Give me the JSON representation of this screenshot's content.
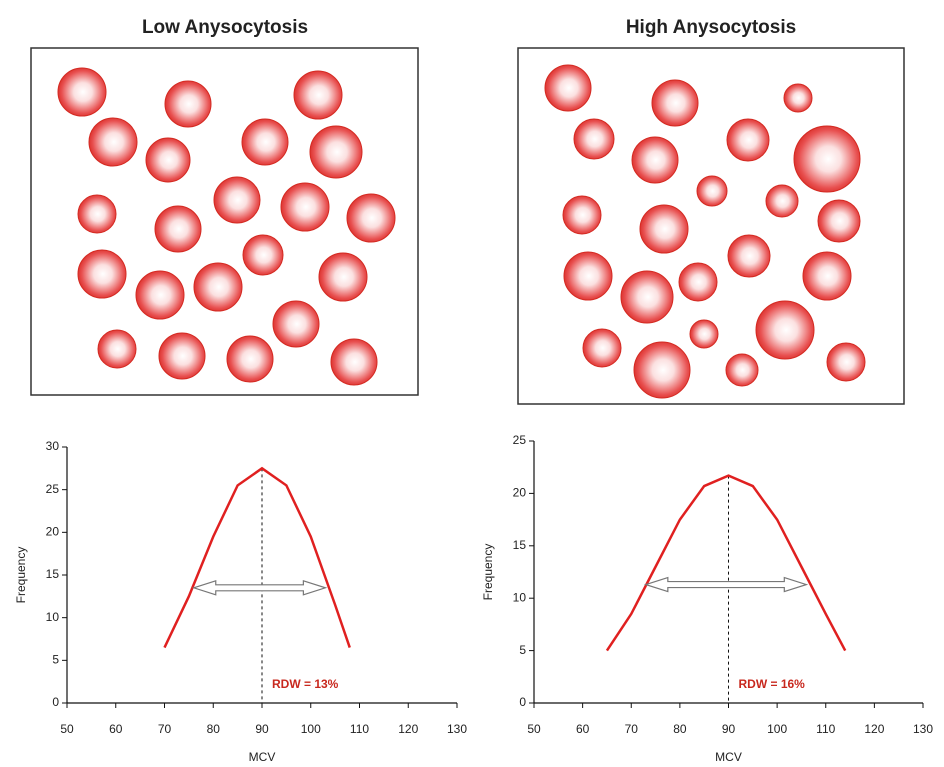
{
  "chart_data": [
    {
      "type": "line",
      "title": "Low Anysocytosis",
      "x_label": "MCV",
      "y_label": "Frequency",
      "x": [
        70,
        75,
        80,
        85,
        90,
        95,
        100,
        105,
        108
      ],
      "values": [
        6.5,
        12.5,
        19.5,
        25.5,
        27.5,
        25.5,
        19.5,
        11.5,
        6.5
      ],
      "color": "#e02020",
      "xlim": [
        50,
        130
      ],
      "xticks": [
        50,
        60,
        70,
        80,
        90,
        100,
        110,
        120,
        130
      ],
      "ylim": [
        0,
        30
      ],
      "yticks": [
        0,
        5,
        10,
        15,
        20,
        25,
        30
      ],
      "mean_line": {
        "x": 90,
        "y": 27.5
      },
      "rdw_arrow": {
        "y": 13.5,
        "x_start": 76,
        "x_end": 103
      },
      "annotation": "RDW = 13%"
    },
    {
      "type": "line",
      "title": "High Anysocytosis",
      "x_label": "MCV",
      "y_label": "Frequency",
      "x": [
        65,
        70,
        75,
        80,
        85,
        90,
        95,
        100,
        105,
        110,
        114
      ],
      "values": [
        5,
        8.5,
        13,
        17.5,
        20.7,
        21.7,
        20.7,
        17.5,
        13,
        8.5,
        5
      ],
      "color": "#e02020",
      "xlim": [
        50,
        130
      ],
      "xticks": [
        50,
        60,
        70,
        80,
        90,
        100,
        110,
        120,
        130
      ],
      "ylim": [
        0,
        25
      ],
      "yticks": [
        0,
        5,
        10,
        15,
        20,
        25
      ],
      "mean_line": {
        "x": 90,
        "y": 21.7
      },
      "rdw_arrow": {
        "y": 11.3,
        "x_start": 73,
        "x_end": 106
      },
      "annotation": "RDW = 16%"
    }
  ]
}
